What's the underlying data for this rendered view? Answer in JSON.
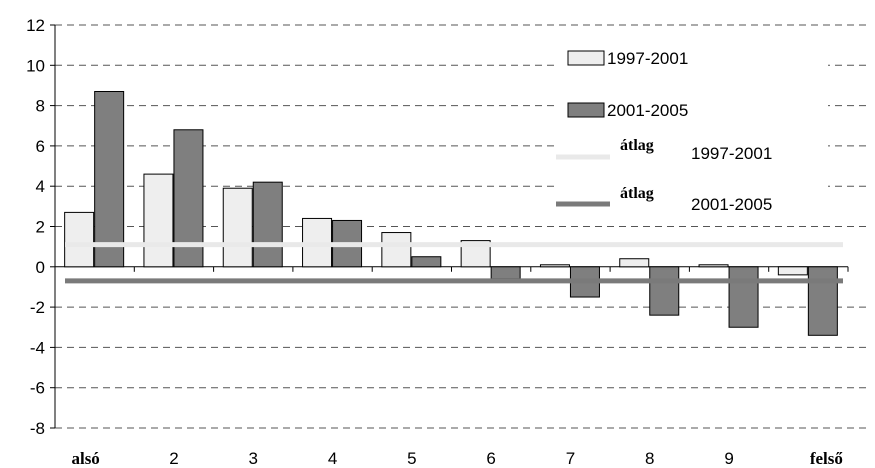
{
  "chart_data": {
    "type": "bar",
    "categories": [
      "alsó",
      "2",
      "3",
      "4",
      "5",
      "6",
      "7",
      "8",
      "9",
      "felső"
    ],
    "bold_categories": [
      "alsó",
      "felső"
    ],
    "series": [
      {
        "name": "1997-2001",
        "values": [
          2.7,
          4.6,
          3.9,
          2.4,
          1.7,
          1.3,
          0.1,
          0.4,
          0.1,
          -0.4
        ],
        "color": "#eeeeee"
      },
      {
        "name": "2001-2005",
        "values": [
          8.7,
          6.8,
          4.2,
          2.3,
          0.5,
          -0.6,
          -1.5,
          -2.4,
          -3.0,
          -3.4
        ],
        "color": "#7f7f7f"
      }
    ],
    "averages": [
      {
        "label": "átlag",
        "period": "1997-2001",
        "value": 1.1,
        "color": "#e9e9e9"
      },
      {
        "label": "átlag",
        "period": "2001-2005",
        "value": -0.7,
        "color": "#7a7a7a"
      }
    ],
    "yticks": [
      12,
      10,
      8,
      6,
      4,
      2,
      0,
      -2,
      -4,
      -6,
      -8
    ],
    "ylim": [
      -8,
      12
    ],
    "grid": true,
    "grid_style": "dashed",
    "legend_position": "top-right",
    "title": "",
    "xlabel": "",
    "ylabel": ""
  }
}
